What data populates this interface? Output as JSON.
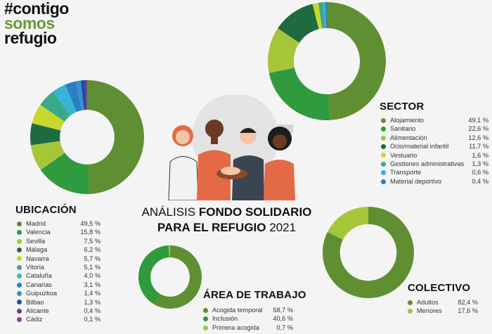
{
  "logo": {
    "line1": "#contigo",
    "line2": "somos",
    "line3": "refugio"
  },
  "headline": {
    "part1": "ANÁLISIS ",
    "part2": "FONDO SOLIDARIO",
    "part3": "PARA EL REFUGIO",
    "part4": " 2021"
  },
  "colors": {
    "dark_green": "#5f8f32",
    "mid_green": "#2f9a3e",
    "lime": "#a6c63a",
    "deep_green": "#1e6b3f",
    "yellow_green": "#c8d82e",
    "teal": "#3aa98a",
    "cyan": "#38b2d6",
    "blue": "#2a7fc0",
    "navy": "#1d4f96",
    "purple": "#6d3a8c",
    "violet": "#8a3fa0"
  },
  "chart_data": [
    {
      "type": "pie",
      "title": "SECTOR",
      "categories": [
        "Alojamiento",
        "Sanitario",
        "Alimentación",
        "Ocio/material infantil",
        "Vestuario",
        "Gestiones administrativas",
        "Transporte",
        "Material deportivo"
      ],
      "values": [
        49.1,
        22.6,
        12.6,
        11.7,
        1.6,
        1.3,
        0.6,
        0.4
      ],
      "labels": [
        "49,1 %",
        "22,6 %",
        "12,6 %",
        "11,7 %",
        "1,6 %",
        "1,3 %",
        "0,6 %",
        "0,4 %"
      ],
      "colors": [
        "#5f8f32",
        "#2f9a3e",
        "#a6c63a",
        "#1e6b3f",
        "#c8d82e",
        "#3aa98a",
        "#38b2d6",
        "#2a7fc0"
      ]
    },
    {
      "type": "pie",
      "title": "UBICACIÓN",
      "categories": [
        "Madrid",
        "Valencia",
        "Sevilla",
        "Málaga",
        "Navarra",
        "Vitoria",
        "Cataluña",
        "Canarias",
        "Guipuzkoa",
        "Bilbao",
        "Alicante",
        "Cádiz"
      ],
      "values": [
        49.5,
        15.8,
        7.5,
        6.2,
        5.7,
        5.1,
        4.0,
        3.1,
        1.4,
        1.3,
        0.4,
        0.1
      ],
      "labels": [
        "49,5 %",
        "15,8 %",
        "7,5 %",
        "6,2 %",
        "5,7 %",
        "5,1 %",
        "4,0 %",
        "3,1 %",
        "1,4 %",
        "1,3 %",
        "0,4 %",
        "0,1 %"
      ],
      "colors": [
        "#5f8f32",
        "#2f9a3e",
        "#a6c63a",
        "#1e6b3f",
        "#c8d82e",
        "#3aa98a",
        "#38b2d6",
        "#2a7fc0",
        "#3b8fd0",
        "#1d4f96",
        "#6d3a8c",
        "#8a3fa0"
      ]
    },
    {
      "type": "pie",
      "title": "ÁREA DE TRABAJO",
      "categories": [
        "Acogida temporal",
        "Inclusión",
        "Primera acogida"
      ],
      "values": [
        58.7,
        40.6,
        0.7
      ],
      "labels": [
        "58,7 %",
        "40,6 %",
        "0,7 %"
      ],
      "colors": [
        "#5f8f32",
        "#2f9a3e",
        "#a6c63a"
      ]
    },
    {
      "type": "pie",
      "title": "COLECTIVO",
      "categories": [
        "Adultos",
        "Menores"
      ],
      "values": [
        82.4,
        17.6
      ],
      "labels": [
        "82,4 %",
        "17,6 %"
      ],
      "colors": [
        "#5f8f32",
        "#a6c63a"
      ]
    }
  ]
}
